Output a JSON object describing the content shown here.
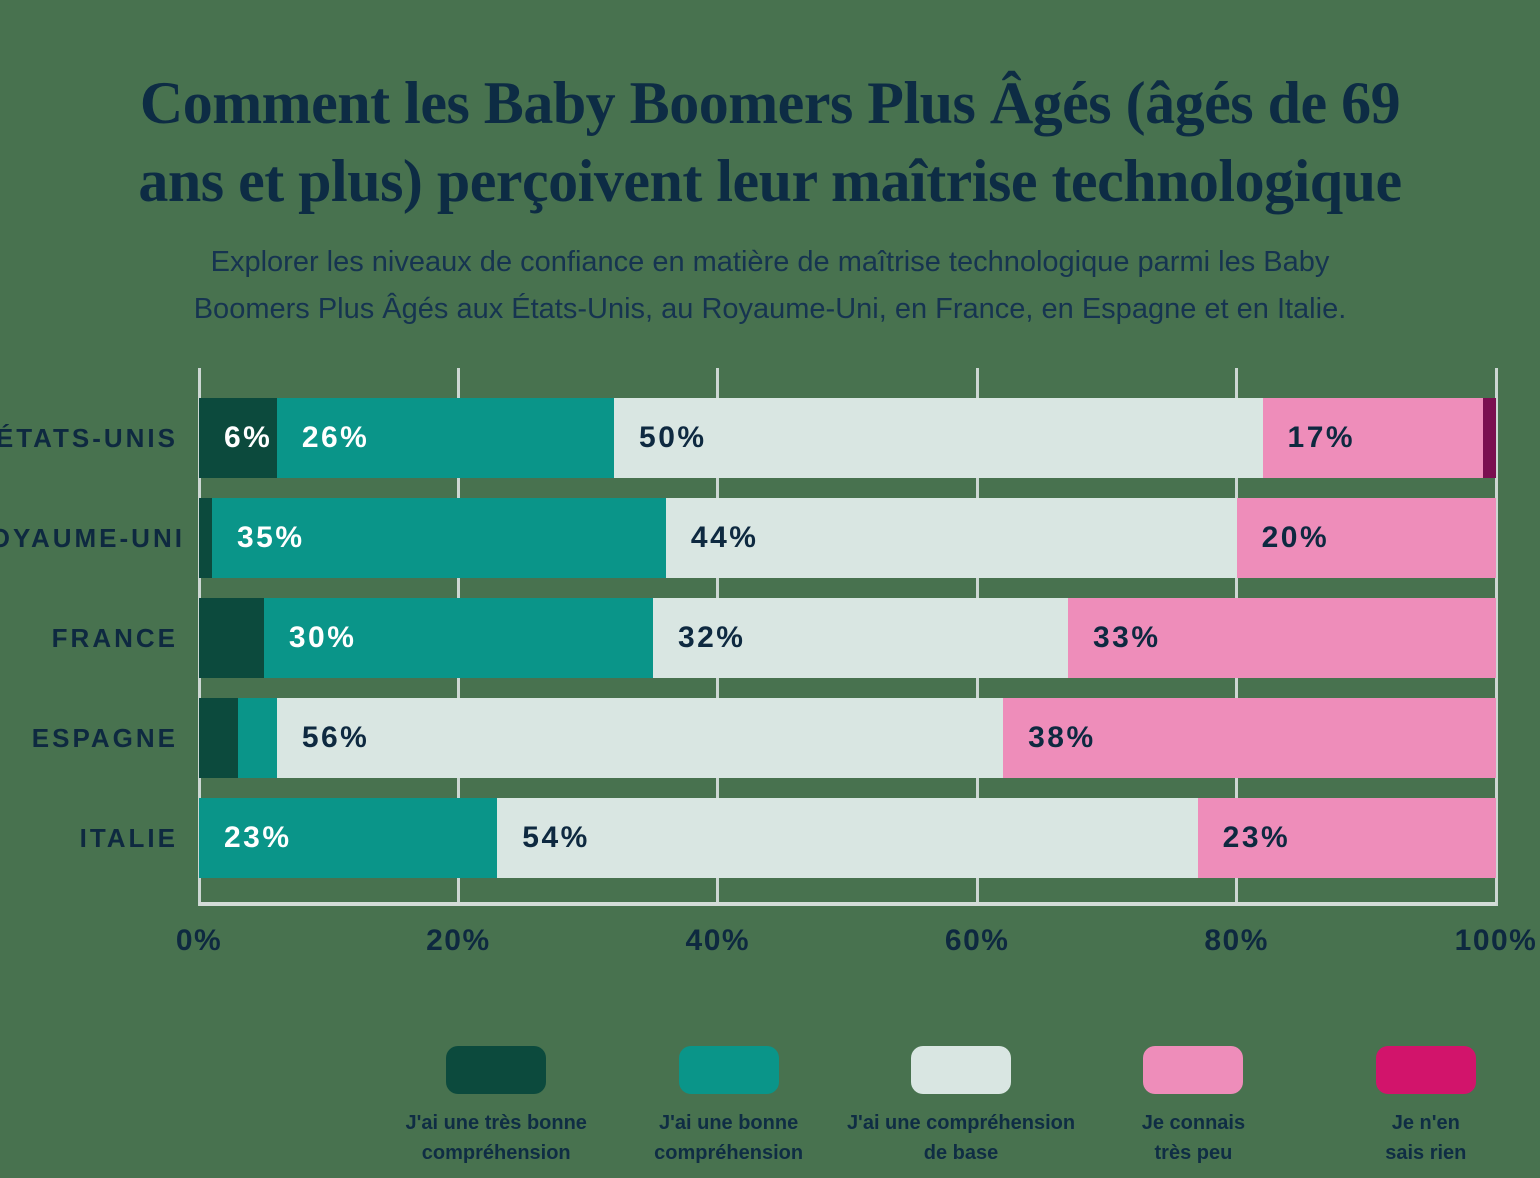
{
  "header": {
    "title_line1": "Comment les Baby Boomers Plus Âgés (âgés de 69",
    "title_line2": "ans et plus) perçoivent leur maîtrise technologique",
    "subtitle_line1": "Explorer les niveaux de confiance en matière de maîtrise technologique parmi les Baby",
    "subtitle_line2": "Boomers Plus Âgés aux États-Unis, au Royaume-Uni, en France, en Espagne et en Italie."
  },
  "colors": {
    "background": "#48724f",
    "title_text": "#0d2c44",
    "subtitle_text": "#163450",
    "label_dark": "#0e2940",
    "label_light": "#ffffff",
    "gridline": "#cdd7d3",
    "axis_line": "#d3dcd8"
  },
  "chart_data": {
    "type": "bar",
    "orientation": "horizontal",
    "stacked": true,
    "grid": true,
    "xlim": [
      0,
      100
    ],
    "x_ticks": [
      "0%",
      "20%",
      "40%",
      "60%",
      "80%",
      "100%"
    ],
    "label_min_value": 6,
    "legend_position": "bottom",
    "categories": [
      "ÉTATS-UNIS",
      "ROYAUME-UNI",
      "FRANCE",
      "ESPAGNE",
      "ITALIE"
    ],
    "series": [
      {
        "name": "J'ai une très bonne compréhension",
        "color": "#0c4a3d",
        "label_color": "#ffffff",
        "values": [
          6,
          1,
          5,
          3,
          0
        ]
      },
      {
        "name": "J'ai une bonne compréhension",
        "color": "#0a9589",
        "label_color": "#ffffff",
        "values": [
          26,
          35,
          30,
          3,
          23
        ]
      },
      {
        "name": "J'ai une compréhension de base",
        "color": "#d9e6e2",
        "label_color": "#0e2940",
        "values": [
          50,
          44,
          32,
          56,
          54
        ]
      },
      {
        "name": "Je connais très peu",
        "color": "#ee8dba",
        "label_color": "#0e2940",
        "values": [
          17,
          20,
          33,
          38,
          23
        ]
      },
      {
        "name": "Je n'en sais rien",
        "color": "#7a0f50",
        "legend_color": "#d2146b",
        "label_color": "#ffffff",
        "values": [
          1,
          0,
          0,
          0,
          0
        ]
      }
    ]
  },
  "legend": {
    "items": [
      {
        "color": "#0c4a3d",
        "line1": "J'ai une très bonne",
        "line2": "compréhension"
      },
      {
        "color": "#0a9589",
        "line1": "J'ai une bonne",
        "line2": "compréhension"
      },
      {
        "color": "#d9e6e2",
        "line1": "J'ai une compréhension",
        "line2": "de base"
      },
      {
        "color": "#ee8dba",
        "line1": "Je connais",
        "line2": "très peu"
      },
      {
        "color": "#d2146b",
        "line1": "Je n'en",
        "line2": "sais rien"
      }
    ]
  }
}
